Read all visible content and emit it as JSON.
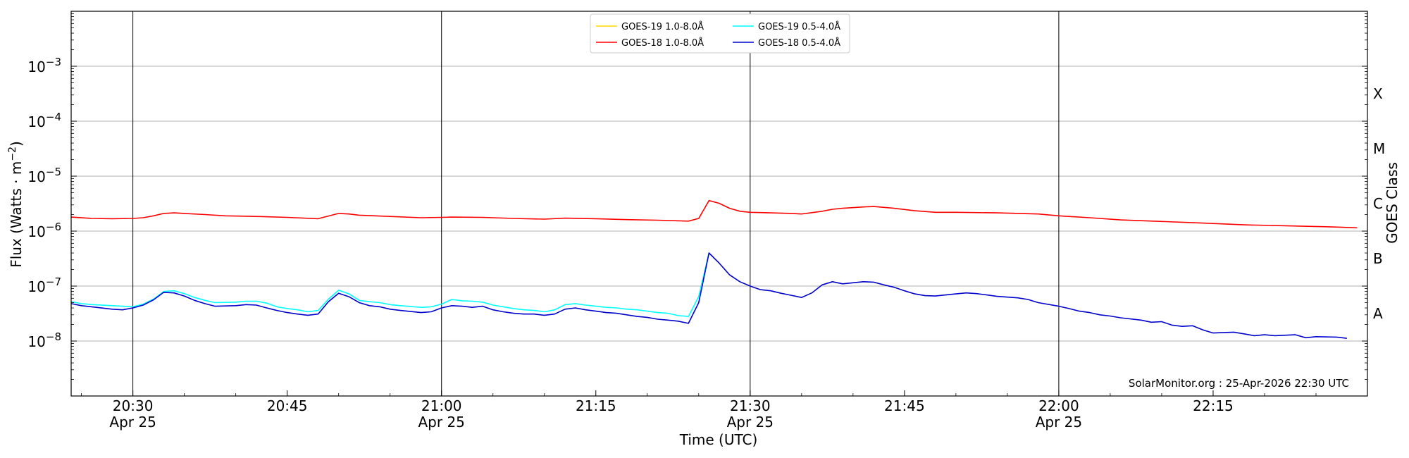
{
  "chart_data": {
    "type": "line",
    "title": "",
    "xlabel": "Time (UTC)",
    "ylabel": "Flux (Watts · m",
    "ylabel_sup": "−2",
    "ylabel_close": ")",
    "y2label": "GOES Class",
    "yscale": "log",
    "ylim": [
      1e-09,
      0.01
    ],
    "xlim": [
      "20:24",
      "22:30"
    ],
    "grid": "horizontal",
    "legend_position": "top-center",
    "credit": "SolarMonitor.org : 25-Apr-2026 22:30 UTC",
    "date_label": "Apr 25",
    "x_ticks": [
      "20:30",
      "20:45",
      "21:00",
      "21:15",
      "21:30",
      "21:45",
      "22:00",
      "22:15"
    ],
    "x_ticks_with_date": [
      "20:30",
      "21:00",
      "21:30",
      "22:00"
    ],
    "vertical_lines": [
      "20:30",
      "21:00",
      "21:30",
      "22:00"
    ],
    "y_ticks": [
      {
        "value": 1e-08,
        "exp": "−8"
      },
      {
        "value": 1e-07,
        "exp": "−7"
      },
      {
        "value": 1e-06,
        "exp": "−6"
      },
      {
        "value": 1e-05,
        "exp": "−5"
      },
      {
        "value": 0.0001,
        "exp": "−4"
      },
      {
        "value": 0.001,
        "exp": "−3"
      }
    ],
    "goes_classes": [
      {
        "label": "A",
        "value": 3.16e-08
      },
      {
        "label": "B",
        "value": 3.16e-07
      },
      {
        "label": "C",
        "value": 3.16e-06
      },
      {
        "label": "M",
        "value": 3.16e-05
      },
      {
        "label": "X",
        "value": 0.000316
      }
    ],
    "series": [
      {
        "name": "GOES-19 1.0-8.0Å",
        "color": "#ffd700",
        "points": []
      },
      {
        "name": "GOES-18 1.0-8.0Å",
        "color": "#ff0000",
        "points": [
          [
            "20:24",
            1.8e-06
          ],
          [
            "20:26",
            1.7e-06
          ],
          [
            "20:28",
            1.68e-06
          ],
          [
            "20:30",
            1.7e-06
          ],
          [
            "20:31",
            1.75e-06
          ],
          [
            "20:32",
            1.9e-06
          ],
          [
            "20:33",
            2.1e-06
          ],
          [
            "20:34",
            2.15e-06
          ],
          [
            "20:35",
            2.1e-06
          ],
          [
            "20:37",
            2e-06
          ],
          [
            "20:39",
            1.9e-06
          ],
          [
            "20:42",
            1.85e-06
          ],
          [
            "20:45",
            1.78e-06
          ],
          [
            "20:48",
            1.68e-06
          ],
          [
            "20:50",
            2.1e-06
          ],
          [
            "20:51",
            2.05e-06
          ],
          [
            "20:52",
            1.95e-06
          ],
          [
            "20:55",
            1.85e-06
          ],
          [
            "20:58",
            1.75e-06
          ],
          [
            "21:00",
            1.78e-06
          ],
          [
            "21:01",
            1.8e-06
          ],
          [
            "21:04",
            1.78e-06
          ],
          [
            "21:07",
            1.7e-06
          ],
          [
            "21:10",
            1.65e-06
          ],
          [
            "21:12",
            1.72e-06
          ],
          [
            "21:15",
            1.68e-06
          ],
          [
            "21:18",
            1.62e-06
          ],
          [
            "21:21",
            1.58e-06
          ],
          [
            "21:24",
            1.52e-06
          ],
          [
            "21:25",
            1.7e-06
          ],
          [
            "21:26",
            3.6e-06
          ],
          [
            "21:27",
            3.2e-06
          ],
          [
            "21:28",
            2.6e-06
          ],
          [
            "21:29",
            2.3e-06
          ],
          [
            "21:30",
            2.2e-06
          ],
          [
            "21:32",
            2.15e-06
          ],
          [
            "21:34",
            2.1e-06
          ],
          [
            "21:35",
            2.05e-06
          ],
          [
            "21:37",
            2.3e-06
          ],
          [
            "21:38",
            2.5e-06
          ],
          [
            "21:39",
            2.6e-06
          ],
          [
            "21:41",
            2.75e-06
          ],
          [
            "21:42",
            2.8e-06
          ],
          [
            "21:44",
            2.6e-06
          ],
          [
            "21:46",
            2.35e-06
          ],
          [
            "21:48",
            2.2e-06
          ],
          [
            "21:50",
            2.2e-06
          ],
          [
            "21:54",
            2.15e-06
          ],
          [
            "21:58",
            2.05e-06
          ],
          [
            "22:00",
            1.9e-06
          ],
          [
            "22:03",
            1.75e-06
          ],
          [
            "22:06",
            1.6e-06
          ],
          [
            "22:10",
            1.5e-06
          ],
          [
            "22:14",
            1.4e-06
          ],
          [
            "22:18",
            1.3e-06
          ],
          [
            "22:22",
            1.25e-06
          ],
          [
            "22:26",
            1.2e-06
          ],
          [
            "22:29",
            1.15e-06
          ]
        ]
      },
      {
        "name": "GOES-19 0.5-4.0Å",
        "color": "#00ffff",
        "points": [
          [
            "20:24",
            5.2e-08
          ],
          [
            "20:25",
            4.8e-08
          ],
          [
            "20:26",
            4.6e-08
          ],
          [
            "20:28",
            4.4e-08
          ],
          [
            "20:29",
            4.3e-08
          ],
          [
            "20:30",
            4.2e-08
          ],
          [
            "20:31",
            4.7e-08
          ],
          [
            "20:32",
            5.8e-08
          ],
          [
            "20:33",
            8e-08
          ],
          [
            "20:34",
            8.2e-08
          ],
          [
            "20:35",
            7.3e-08
          ],
          [
            "20:36",
            6.2e-08
          ],
          [
            "20:37",
            5.5e-08
          ],
          [
            "20:38",
            5e-08
          ],
          [
            "20:40",
            5.1e-08
          ],
          [
            "20:41",
            5.3e-08
          ],
          [
            "20:42",
            5.3e-08
          ],
          [
            "20:43",
            4.9e-08
          ],
          [
            "20:44",
            4.2e-08
          ],
          [
            "20:45",
            3.9e-08
          ],
          [
            "20:46",
            3.7e-08
          ],
          [
            "20:47",
            3.4e-08
          ],
          [
            "20:48",
            3.6e-08
          ],
          [
            "20:49",
            5.8e-08
          ],
          [
            "20:50",
            8.4e-08
          ],
          [
            "20:51",
            7.2e-08
          ],
          [
            "20:52",
            5.5e-08
          ],
          [
            "20:53",
            5.2e-08
          ],
          [
            "20:54",
            5e-08
          ],
          [
            "20:55",
            4.6e-08
          ],
          [
            "20:56",
            4.4e-08
          ],
          [
            "20:58",
            4.1e-08
          ],
          [
            "20:59",
            4.2e-08
          ],
          [
            "21:00",
            4.7e-08
          ],
          [
            "21:01",
            5.7e-08
          ],
          [
            "21:02",
            5.4e-08
          ],
          [
            "21:03",
            5.3e-08
          ],
          [
            "21:04",
            5.1e-08
          ],
          [
            "21:05",
            4.5e-08
          ],
          [
            "21:06",
            4.2e-08
          ],
          [
            "21:07",
            3.9e-08
          ],
          [
            "21:08",
            3.7e-08
          ],
          [
            "21:09",
            3.6e-08
          ],
          [
            "21:10",
            3.4e-08
          ],
          [
            "21:11",
            3.7e-08
          ],
          [
            "21:12",
            4.6e-08
          ],
          [
            "21:13",
            4.8e-08
          ],
          [
            "21:14",
            4.5e-08
          ],
          [
            "21:15",
            4.3e-08
          ],
          [
            "21:16",
            4.1e-08
          ],
          [
            "21:17",
            4e-08
          ],
          [
            "21:18",
            3.8e-08
          ],
          [
            "21:19",
            3.7e-08
          ],
          [
            "21:20",
            3.5e-08
          ],
          [
            "21:21",
            3.3e-08
          ],
          [
            "21:22",
            3.2e-08
          ],
          [
            "21:23",
            2.9e-08
          ],
          [
            "21:24",
            2.8e-08
          ],
          [
            "21:25",
            6.5e-08
          ],
          [
            "21:26",
            4e-07
          ]
        ]
      },
      {
        "name": "GOES-18 0.5-4.0Å",
        "color": "#0000cd",
        "points": [
          [
            "20:24",
            4.8e-08
          ],
          [
            "20:25",
            4.4e-08
          ],
          [
            "20:26",
            4.2e-08
          ],
          [
            "20:28",
            3.8e-08
          ],
          [
            "20:29",
            3.7e-08
          ],
          [
            "20:30",
            4e-08
          ],
          [
            "20:31",
            4.5e-08
          ],
          [
            "20:32",
            5.6e-08
          ],
          [
            "20:33",
            7.7e-08
          ],
          [
            "20:34",
            7.5e-08
          ],
          [
            "20:35",
            6.6e-08
          ],
          [
            "20:36",
            5.5e-08
          ],
          [
            "20:37",
            4.8e-08
          ],
          [
            "20:38",
            4.3e-08
          ],
          [
            "20:40",
            4.4e-08
          ],
          [
            "20:41",
            4.6e-08
          ],
          [
            "20:42",
            4.5e-08
          ],
          [
            "20:43",
            4e-08
          ],
          [
            "20:44",
            3.6e-08
          ],
          [
            "20:45",
            3.3e-08
          ],
          [
            "20:46",
            3.1e-08
          ],
          [
            "20:47",
            2.95e-08
          ],
          [
            "20:48",
            3.1e-08
          ],
          [
            "20:49",
            5.2e-08
          ],
          [
            "20:50",
            7.4e-08
          ],
          [
            "20:51",
            6.4e-08
          ],
          [
            "20:52",
            5e-08
          ],
          [
            "20:53",
            4.4e-08
          ],
          [
            "20:54",
            4.2e-08
          ],
          [
            "20:55",
            3.8e-08
          ],
          [
            "20:56",
            3.6e-08
          ],
          [
            "20:58",
            3.3e-08
          ],
          [
            "20:59",
            3.4e-08
          ],
          [
            "21:00",
            4e-08
          ],
          [
            "21:01",
            4.4e-08
          ],
          [
            "21:02",
            4.3e-08
          ],
          [
            "21:03",
            4.1e-08
          ],
          [
            "21:04",
            4.3e-08
          ],
          [
            "21:05",
            3.7e-08
          ],
          [
            "21:06",
            3.4e-08
          ],
          [
            "21:07",
            3.2e-08
          ],
          [
            "21:08",
            3.1e-08
          ],
          [
            "21:09",
            3.1e-08
          ],
          [
            "21:10",
            2.95e-08
          ],
          [
            "21:11",
            3.1e-08
          ],
          [
            "21:12",
            3.8e-08
          ],
          [
            "21:13",
            4e-08
          ],
          [
            "21:14",
            3.7e-08
          ],
          [
            "21:15",
            3.5e-08
          ],
          [
            "21:16",
            3.3e-08
          ],
          [
            "21:17",
            3.2e-08
          ],
          [
            "21:18",
            3e-08
          ],
          [
            "21:19",
            2.8e-08
          ],
          [
            "21:20",
            2.7e-08
          ],
          [
            "21:21",
            2.5e-08
          ],
          [
            "21:22",
            2.4e-08
          ],
          [
            "21:23",
            2.3e-08
          ],
          [
            "21:24",
            2.1e-08
          ],
          [
            "21:25",
            5e-08
          ],
          [
            "21:26",
            4e-07
          ],
          [
            "21:27",
            2.6e-07
          ],
          [
            "21:28",
            1.6e-07
          ],
          [
            "21:29",
            1.2e-07
          ],
          [
            "21:30",
            1e-07
          ],
          [
            "21:31",
            8.6e-08
          ],
          [
            "21:32",
            8.2e-08
          ],
          [
            "21:33",
            7.4e-08
          ],
          [
            "21:34",
            6.8e-08
          ],
          [
            "21:35",
            6.2e-08
          ],
          [
            "21:36",
            7.5e-08
          ],
          [
            "21:37",
            1.05e-07
          ],
          [
            "21:38",
            1.2e-07
          ],
          [
            "21:39",
            1.1e-07
          ],
          [
            "21:40",
            1.15e-07
          ],
          [
            "21:41",
            1.2e-07
          ],
          [
            "21:42",
            1.18e-07
          ],
          [
            "21:43",
            1.05e-07
          ],
          [
            "21:44",
            9.5e-08
          ],
          [
            "21:45",
            8.2e-08
          ],
          [
            "21:46",
            7.2e-08
          ],
          [
            "21:47",
            6.7e-08
          ],
          [
            "21:48",
            6.6e-08
          ],
          [
            "21:49",
            6.9e-08
          ],
          [
            "21:50",
            7.2e-08
          ],
          [
            "21:51",
            7.5e-08
          ],
          [
            "21:52",
            7.3e-08
          ],
          [
            "21:53",
            6.9e-08
          ],
          [
            "21:54",
            6.5e-08
          ],
          [
            "21:56",
            6.1e-08
          ],
          [
            "21:57",
            5.7e-08
          ],
          [
            "21:58",
            5e-08
          ],
          [
            "22:00",
            4.3e-08
          ],
          [
            "22:01",
            3.9e-08
          ],
          [
            "22:02",
            3.5e-08
          ],
          [
            "22:03",
            3.3e-08
          ],
          [
            "22:04",
            3e-08
          ],
          [
            "22:05",
            2.85e-08
          ],
          [
            "22:06",
            2.65e-08
          ],
          [
            "22:08",
            2.4e-08
          ],
          [
            "22:09",
            2.2e-08
          ],
          [
            "22:10",
            2.25e-08
          ],
          [
            "22:11",
            1.95e-08
          ],
          [
            "22:12",
            1.85e-08
          ],
          [
            "22:13",
            1.9e-08
          ],
          [
            "22:14",
            1.6e-08
          ],
          [
            "22:15",
            1.4e-08
          ],
          [
            "22:17",
            1.45e-08
          ],
          [
            "22:18",
            1.35e-08
          ],
          [
            "22:19",
            1.25e-08
          ],
          [
            "22:20",
            1.3e-08
          ],
          [
            "22:21",
            1.25e-08
          ],
          [
            "22:23",
            1.3e-08
          ],
          [
            "22:24",
            1.15e-08
          ],
          [
            "22:25",
            1.2e-08
          ],
          [
            "22:27",
            1.18e-08
          ],
          [
            "22:28",
            1.12e-08
          ]
        ]
      }
    ]
  }
}
